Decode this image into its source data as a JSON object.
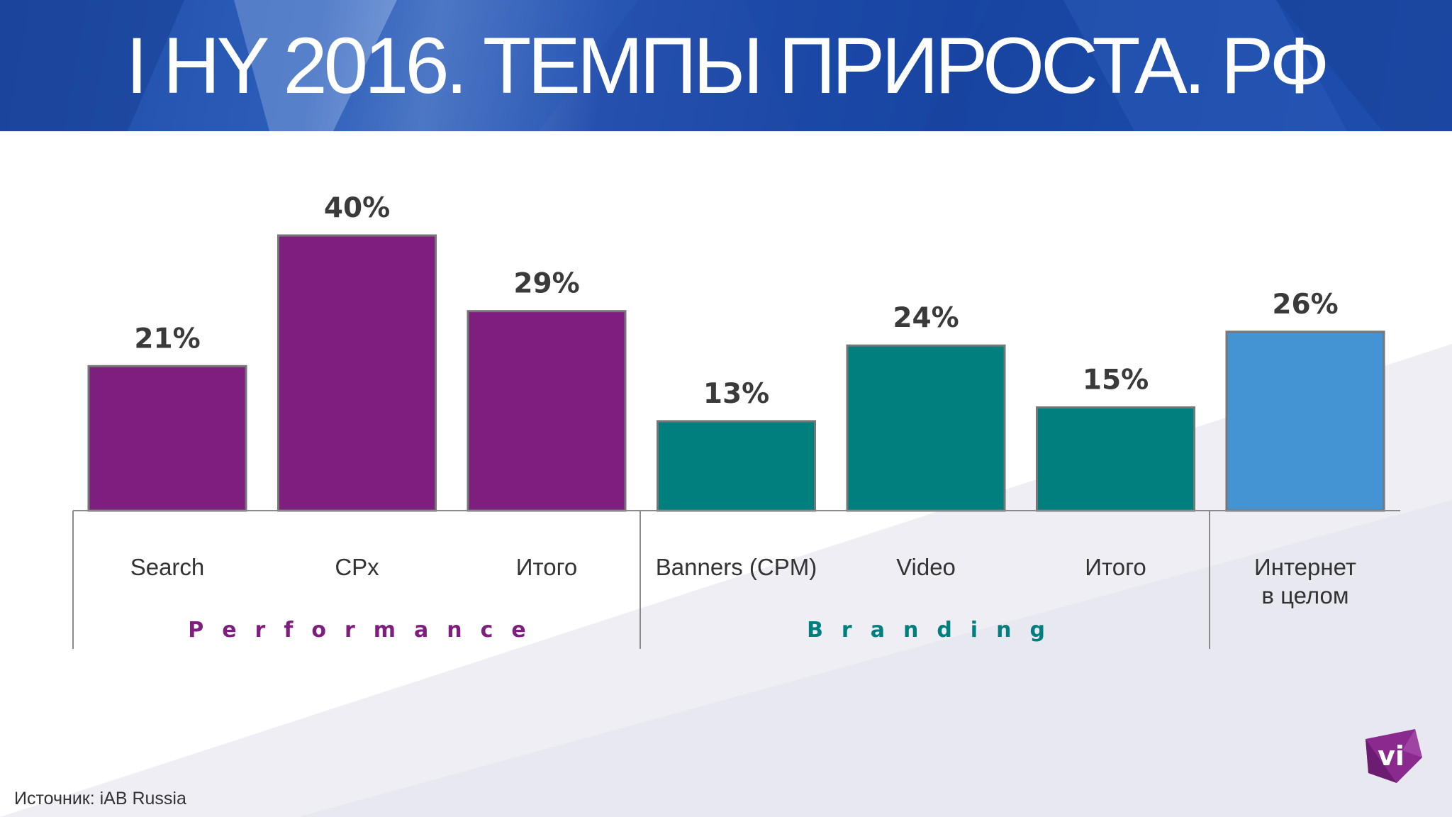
{
  "title": "I HY 2016. ТЕМПЫ ПРИРОСТА. РФ",
  "source": "Источник: iAB Russia",
  "logo_text": "vi",
  "colors": {
    "performance": "#7e1e7e",
    "branding": "#007f7f",
    "total": "#4493d2",
    "banner": "#1d4aa6"
  },
  "chart_data": {
    "type": "bar",
    "categories": [
      "Search",
      "CPx",
      "Итого",
      "Banners (CPM)",
      "Video",
      "Итого",
      "Интернет\nв целом"
    ],
    "values": [
      21,
      40,
      29,
      13,
      24,
      15,
      26
    ],
    "value_labels": [
      "21%",
      "40%",
      "29%",
      "13%",
      "24%",
      "15%",
      "26%"
    ],
    "groups": [
      {
        "name": "Performance",
        "categories": [
          0,
          1,
          2
        ]
      },
      {
        "name": "Branding",
        "categories": [
          3,
          4,
          5
        ]
      },
      {
        "name": "",
        "categories": [
          6
        ]
      }
    ],
    "ylim": [
      0,
      40
    ],
    "grid": false,
    "legend": "none"
  }
}
